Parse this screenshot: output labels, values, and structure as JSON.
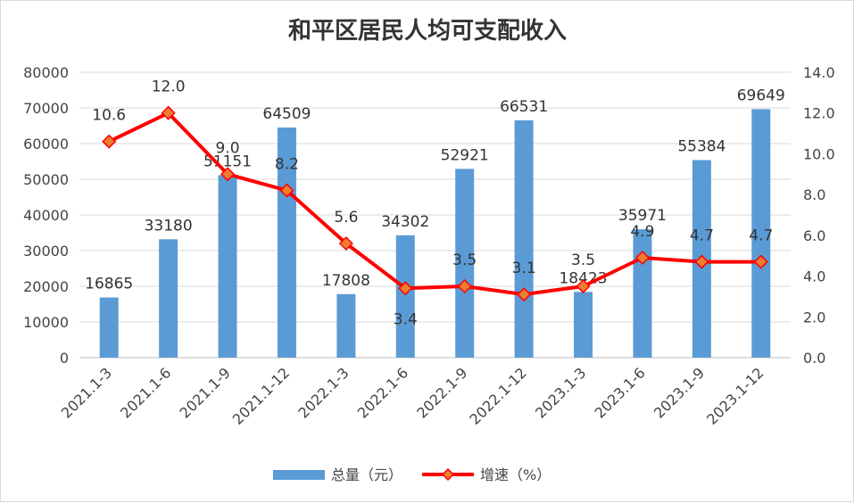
{
  "chart_data": {
    "type": "bar",
    "title": "和平区居民人均可支配收入",
    "categories": [
      "2021.1-3",
      "2021.1-6",
      "2021.1-9",
      "2021.1-12",
      "2022.1-3",
      "2022.1-6",
      "2022.1-9",
      "2022.1-12",
      "2023.1-3",
      "2023.1-6",
      "2023.1-9",
      "2023.1-12"
    ],
    "series": [
      {
        "name": "总量（元）",
        "type": "bar",
        "axis": "left",
        "color": "#5b9bd5",
        "values": [
          16865,
          33180,
          51151,
          64509,
          17808,
          34302,
          52921,
          66531,
          18423,
          35971,
          55384,
          69649
        ],
        "labels": [
          "16865",
          "33180",
          "51151",
          "64509",
          "17808",
          "34302",
          "52921",
          "66531",
          "18423",
          "35971",
          "55384",
          "69649"
        ]
      },
      {
        "name": "增速（%）",
        "type": "line",
        "axis": "right",
        "color": "#ff0000",
        "marker_color": "#ed7d31",
        "values": [
          10.6,
          12.0,
          9.0,
          8.2,
          5.6,
          3.4,
          3.5,
          3.1,
          3.5,
          4.9,
          4.7,
          4.7
        ],
        "labels": [
          "10.6",
          "12.0",
          "9.0",
          "8.2",
          "5.6",
          "3.4",
          "3.5",
          "3.1",
          "3.5",
          "4.9",
          "4.7",
          "4.7"
        ]
      }
    ],
    "y_left": {
      "min": 0,
      "max": 80000,
      "step": 10000,
      "ticks": [
        "0",
        "10000",
        "20000",
        "30000",
        "40000",
        "50000",
        "60000",
        "70000",
        "80000"
      ]
    },
    "y_right": {
      "min": 0,
      "max": 14,
      "step": 2,
      "ticks": [
        "0.0",
        "2.0",
        "4.0",
        "6.0",
        "8.0",
        "10.0",
        "12.0",
        "14.0"
      ]
    },
    "grid": true,
    "legend_position": "bottom"
  }
}
